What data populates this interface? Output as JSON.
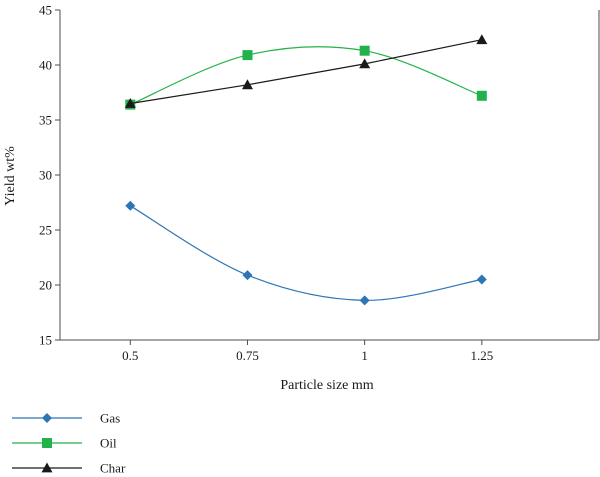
{
  "chart_data": {
    "type": "line",
    "title": "",
    "xlabel": "Particle size mm",
    "ylabel": "Yield wt%",
    "categories": [
      "0.5",
      "0.75",
      "1",
      "1.25"
    ],
    "x": [
      0.5,
      0.75,
      1,
      1.25
    ],
    "xlim": [
      0.35,
      1.5
    ],
    "ylim": [
      15,
      45
    ],
    "yticks": [
      15,
      20,
      25,
      30,
      35,
      40,
      45
    ],
    "grid": false,
    "legend_position": "bottom-left",
    "smoothed": true,
    "series": [
      {
        "name": "Gas",
        "values": [
          27.2,
          20.9,
          18.6,
          20.5
        ],
        "color": "#2e75b6",
        "marker": "diamond"
      },
      {
        "name": "Oil",
        "values": [
          36.4,
          40.9,
          41.3,
          37.2
        ],
        "color": "#22b24c",
        "marker": "square"
      },
      {
        "name": "Char",
        "values": [
          36.5,
          38.2,
          40.1,
          42.3
        ],
        "color": "#1a1a1a",
        "marker": "triangle"
      }
    ]
  }
}
